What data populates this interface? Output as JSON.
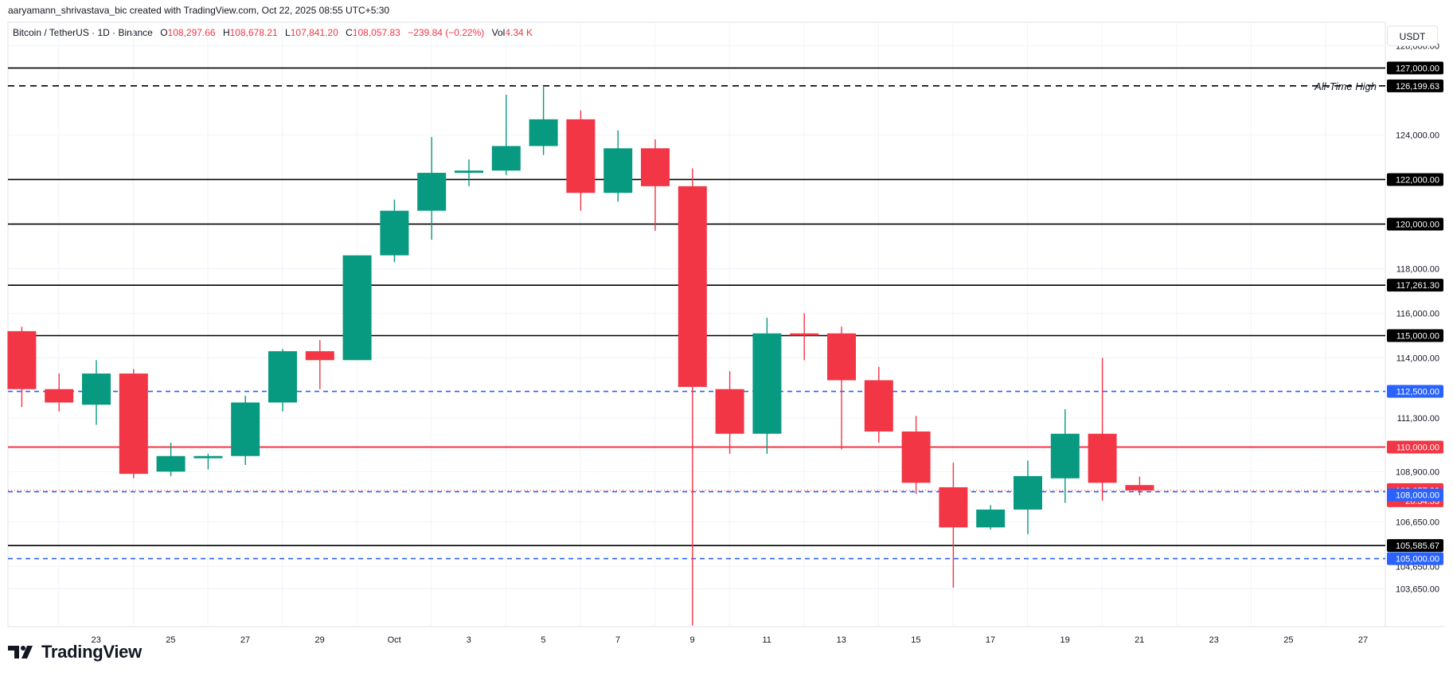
{
  "header": {
    "author_line": "aaryamann_shrivastava_bic created with TradingView.com, Oct 22, 2025 08:55 UTC+5:30",
    "symbol": "Bitcoin / TetherUS · 1D · Binance",
    "open_label": "O",
    "open_value": "108,297.66",
    "high_label": "H",
    "high_value": "108,678.21",
    "low_label": "L",
    "low_value": "107,841.20",
    "close_label": "C",
    "close_value": "108,057.83",
    "change": "−239.84 (−0.22%)",
    "vol_label": "Vol",
    "vol_value": "4.34 K"
  },
  "currency_button": "USDT",
  "brand": {
    "name": "TradingView"
  },
  "colors": {
    "up": "#089981",
    "down": "#f23645",
    "level": "#000000",
    "blue": "#2962ff",
    "red_level": "#f23645"
  },
  "chart_data": {
    "type": "candlestick",
    "candles": [
      {
        "date": "2025-09-22",
        "o": 115200,
        "h": 115400,
        "l": 111800,
        "c": 112600
      },
      {
        "date": "2025-09-23",
        "o": 112600,
        "h": 113300,
        "l": 111600,
        "c": 112000
      },
      {
        "date": "2025-09-24",
        "o": 111900,
        "h": 113900,
        "l": 111000,
        "c": 113300
      },
      {
        "date": "2025-09-25",
        "o": 113300,
        "h": 113500,
        "l": 108600,
        "c": 108800
      },
      {
        "date": "2025-09-26",
        "o": 108900,
        "h": 110200,
        "l": 108700,
        "c": 109600
      },
      {
        "date": "2025-09-27",
        "o": 109500,
        "h": 109700,
        "l": 109000,
        "c": 109600
      },
      {
        "date": "2025-09-28",
        "o": 109600,
        "h": 112300,
        "l": 109200,
        "c": 112000
      },
      {
        "date": "2025-09-29",
        "o": 112000,
        "h": 114400,
        "l": 111600,
        "c": 114300
      },
      {
        "date": "2025-09-30",
        "o": 114300,
        "h": 114800,
        "l": 112600,
        "c": 113900
      },
      {
        "date": "2025-10-01",
        "o": 113900,
        "h": 118600,
        "l": 113900,
        "c": 118600
      },
      {
        "date": "2025-10-02",
        "o": 118600,
        "h": 121100,
        "l": 118300,
        "c": 120600
      },
      {
        "date": "2025-10-03",
        "o": 120600,
        "h": 123900,
        "l": 119300,
        "c": 122300
      },
      {
        "date": "2025-10-04",
        "o": 122300,
        "h": 122900,
        "l": 121700,
        "c": 122400
      },
      {
        "date": "2025-10-05",
        "o": 122400,
        "h": 125800,
        "l": 122200,
        "c": 123500
      },
      {
        "date": "2025-10-06",
        "o": 123500,
        "h": 126200,
        "l": 123100,
        "c": 124700
      },
      {
        "date": "2025-10-07",
        "o": 124700,
        "h": 125100,
        "l": 120600,
        "c": 121400
      },
      {
        "date": "2025-10-08",
        "o": 121400,
        "h": 124200,
        "l": 121000,
        "c": 123400
      },
      {
        "date": "2025-10-09",
        "o": 123400,
        "h": 123800,
        "l": 119700,
        "c": 121700
      },
      {
        "date": "2025-10-10",
        "o": 121700,
        "h": 122500,
        "l": 102000,
        "c": 112700
      },
      {
        "date": "2025-10-11",
        "o": 112600,
        "h": 113400,
        "l": 109700,
        "c": 110600
      },
      {
        "date": "2025-10-12",
        "o": 110600,
        "h": 115800,
        "l": 109700,
        "c": 115100
      },
      {
        "date": "2025-10-13",
        "o": 115100,
        "h": 116000,
        "l": 113900,
        "c": 115000
      },
      {
        "date": "2025-10-14",
        "o": 115100,
        "h": 115400,
        "l": 109900,
        "c": 113000
      },
      {
        "date": "2025-10-15",
        "o": 113000,
        "h": 113600,
        "l": 110200,
        "c": 110700
      },
      {
        "date": "2025-10-16",
        "o": 110700,
        "h": 111400,
        "l": 107900,
        "c": 108400
      },
      {
        "date": "2025-10-17",
        "o": 108200,
        "h": 109300,
        "l": 103700,
        "c": 106400
      },
      {
        "date": "2025-10-18",
        "o": 106400,
        "h": 107400,
        "l": 106300,
        "c": 107200
      },
      {
        "date": "2025-10-19",
        "o": 107200,
        "h": 109400,
        "l": 106100,
        "c": 108700
      },
      {
        "date": "2025-10-20",
        "o": 108600,
        "h": 111700,
        "l": 107500,
        "c": 110600
      },
      {
        "date": "2025-10-21",
        "o": 110600,
        "h": 114000,
        "l": 107600,
        "c": 108400
      },
      {
        "date": "2025-10-22",
        "o": 108298,
        "h": 108678,
        "l": 107841,
        "c": 108058
      }
    ],
    "ylim": [
      101950,
      129050
    ],
    "x_ticks": [
      {
        "date": "2025-09-23",
        "label": "23"
      },
      {
        "date": "2025-09-25",
        "label": "25"
      },
      {
        "date": "2025-09-27",
        "label": "27"
      },
      {
        "date": "2025-09-29",
        "label": "29"
      },
      {
        "date": "2025-10-01",
        "label": "Oct"
      },
      {
        "date": "2025-10-03",
        "label": "3"
      },
      {
        "date": "2025-10-05",
        "label": "5"
      },
      {
        "date": "2025-10-07",
        "label": "7"
      },
      {
        "date": "2025-10-09",
        "label": "9"
      },
      {
        "date": "2025-10-11",
        "label": "11"
      },
      {
        "date": "2025-10-13",
        "label": "13"
      },
      {
        "date": "2025-10-15",
        "label": "15"
      },
      {
        "date": "2025-10-17",
        "label": "17"
      },
      {
        "date": "2025-10-19",
        "label": "19"
      },
      {
        "date": "2025-10-21",
        "label": "21"
      },
      {
        "date": "2025-10-23",
        "label": "23"
      },
      {
        "date": "2025-10-25",
        "label": "25"
      },
      {
        "date": "2025-10-27",
        "label": "27"
      }
    ],
    "y_ticks": [
      {
        "value": 128000,
        "label": "128,000.00"
      },
      {
        "value": 124000,
        "label": "124,000.00"
      },
      {
        "value": 118000,
        "label": "118,000.00"
      },
      {
        "value": 116000,
        "label": "116,000.00"
      },
      {
        "value": 114000,
        "label": "114,000.00"
      },
      {
        "value": 111300,
        "label": "111,300.00"
      },
      {
        "value": 108900,
        "label": "108,900.00"
      },
      {
        "value": 106650,
        "label": "106,650.00"
      },
      {
        "value": 104650,
        "label": "104,650.00"
      },
      {
        "value": 103650,
        "label": "103,650.00"
      }
    ],
    "levels": [
      {
        "value": 127000,
        "label": "127,000.00",
        "style": "solid",
        "color": "#000000"
      },
      {
        "value": 126199.63,
        "label": "126,199.63",
        "style": "dashed",
        "color": "#000000",
        "annotation": "All-Time High"
      },
      {
        "value": 122000,
        "label": "122,000.00",
        "style": "solid",
        "color": "#000000"
      },
      {
        "value": 120000,
        "label": "120,000.00",
        "style": "solid",
        "color": "#000000"
      },
      {
        "value": 117261.3,
        "label": "117,261.30",
        "style": "solid",
        "color": "#000000"
      },
      {
        "value": 115000,
        "label": "115,000.00",
        "style": "solid",
        "color": "#000000"
      },
      {
        "value": 112500,
        "label": "112,500.00",
        "style": "dashed",
        "color": "#2962ff"
      },
      {
        "value": 110000,
        "label": "110,000.00",
        "style": "solid",
        "color": "#f23645"
      },
      {
        "value": 108000,
        "label": "108,000.00",
        "style": "dashed",
        "color": "#2962ff"
      },
      {
        "value": 105585.67,
        "label": "105,585.67",
        "style": "solid",
        "color": "#000000"
      },
      {
        "value": 105000,
        "label": "105,000.00",
        "style": "dashed",
        "color": "#2962ff"
      }
    ],
    "last_price": {
      "value": 108057.83,
      "label": "108,057.83",
      "countdown": "20:34:33",
      "color": "#f23645"
    }
  }
}
